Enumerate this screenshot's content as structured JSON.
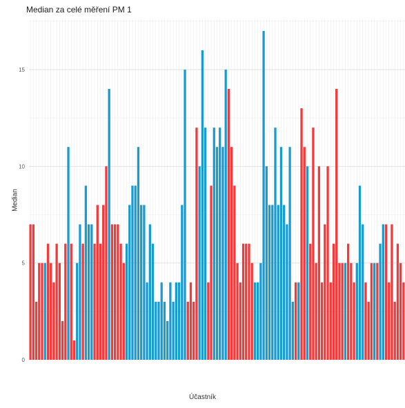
{
  "chart_data": {
    "type": "bar",
    "title": "Median za celé měření PM 1",
    "xlabel": "Účastník",
    "ylabel": "Median",
    "ylim": [
      0,
      17.6
    ],
    "yticks": [
      0,
      5,
      10,
      15
    ],
    "ytick_labels": [
      "0",
      "5",
      "10",
      "15"
    ],
    "grid": true,
    "legend": "none",
    "colors": {
      "red": "#f3393a",
      "blue": "#1a9bd0"
    },
    "values": [
      7,
      7,
      3,
      5,
      5,
      5,
      6,
      5,
      4,
      6,
      5,
      2,
      6,
      11,
      6,
      1,
      5,
      7,
      6,
      9,
      7,
      7,
      6,
      8,
      6,
      8,
      10,
      14,
      7,
      7,
      7,
      6,
      5,
      6,
      8,
      9,
      9,
      11,
      8,
      8,
      4,
      7,
      6,
      3,
      3,
      4,
      3,
      2,
      4,
      3,
      4,
      4,
      8,
      15,
      3,
      4,
      3,
      12,
      10,
      16,
      12,
      4,
      9,
      12,
      11,
      12,
      11,
      15,
      14,
      11,
      9,
      5,
      4,
      6,
      6,
      6,
      5,
      4,
      4,
      5,
      17,
      10,
      8,
      8,
      12,
      8,
      11,
      8,
      7,
      11,
      3,
      4,
      4,
      13,
      11,
      10,
      6,
      12,
      5,
      10,
      4,
      7,
      10,
      4,
      6,
      14,
      5,
      5,
      5,
      6,
      5,
      4,
      5,
      9,
      7,
      4,
      3,
      5,
      5,
      5,
      6,
      7,
      7,
      4,
      7,
      3,
      6,
      5,
      4
    ],
    "series_color": [
      "red",
      "red",
      "red",
      "red",
      "red",
      "blue",
      "red",
      "red",
      "red",
      "red",
      "red",
      "red",
      "red",
      "blue",
      "red",
      "red",
      "blue",
      "blue",
      "red",
      "blue",
      "blue",
      "blue",
      "red",
      "red",
      "red",
      "red",
      "red",
      "blue",
      "red",
      "red",
      "red",
      "red",
      "red",
      "blue",
      "blue",
      "blue",
      "blue",
      "blue",
      "blue",
      "blue",
      "blue",
      "blue",
      "blue",
      "blue",
      "blue",
      "blue",
      "blue",
      "blue",
      "blue",
      "blue",
      "blue",
      "blue",
      "blue",
      "blue",
      "red",
      "red",
      "red",
      "red",
      "blue",
      "blue",
      "blue",
      "red",
      "red",
      "blue",
      "blue",
      "blue",
      "blue",
      "blue",
      "red",
      "red",
      "red",
      "red",
      "red",
      "red",
      "red",
      "red",
      "red",
      "blue",
      "blue",
      "blue",
      "blue",
      "blue",
      "blue",
      "blue",
      "blue",
      "blue",
      "blue",
      "blue",
      "blue",
      "blue",
      "blue",
      "red",
      "blue",
      "red",
      "red",
      "blue",
      "red",
      "red",
      "red",
      "red",
      "red",
      "red",
      "red",
      "red",
      "red",
      "red",
      "red",
      "red",
      "blue",
      "red",
      "red",
      "red",
      "blue",
      "blue",
      "blue",
      "red",
      "red",
      "red",
      "blue",
      "red",
      "blue",
      "blue",
      "red",
      "red",
      "red",
      "red",
      "red",
      "red",
      "red",
      "red"
    ]
  }
}
